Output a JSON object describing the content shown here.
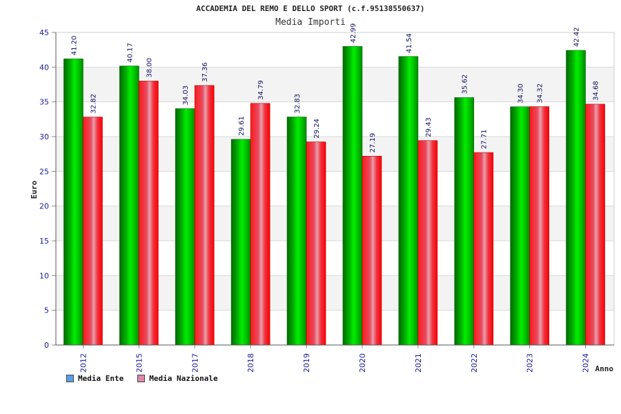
{
  "chart_data": {
    "type": "bar",
    "title": "ACCADEMIA DEL REMO E DELLO SPORT (c.f.95138550637)",
    "subtitle": "Media Importi",
    "xlabel": "Anno",
    "ylabel": "Euro",
    "ylim": [
      0,
      45
    ],
    "yticks": [
      0,
      5,
      10,
      15,
      20,
      25,
      30,
      35,
      40,
      45
    ],
    "grid": true,
    "legend_position": "bottom-left",
    "categories": [
      "2012",
      "2015",
      "2017",
      "2018",
      "2019",
      "2020",
      "2021",
      "2022",
      "2023",
      "2024"
    ],
    "series": [
      {
        "name": "Media Ente",
        "color": "#00bb00",
        "legend_color": "#5aa0e6",
        "values": [
          41.2,
          40.17,
          34.03,
          29.61,
          32.83,
          42.99,
          41.54,
          35.62,
          34.3,
          42.42
        ],
        "labels": [
          "41.20",
          "40.17",
          "34.03",
          "29.61",
          "32.83",
          "42.99",
          "41.54",
          "35.62",
          "34.30",
          "42.42"
        ]
      },
      {
        "name": "Media Nazionale",
        "color": "#ee1122",
        "legend_color": "#dd88aa",
        "values": [
          32.82,
          38.0,
          37.36,
          34.79,
          29.24,
          27.19,
          29.43,
          27.71,
          34.32,
          34.68
        ],
        "labels": [
          "32.82",
          "38.00",
          "37.36",
          "34.79",
          "29.24",
          "27.19",
          "29.43",
          "27.71",
          "34.32",
          "34.68"
        ]
      }
    ]
  }
}
